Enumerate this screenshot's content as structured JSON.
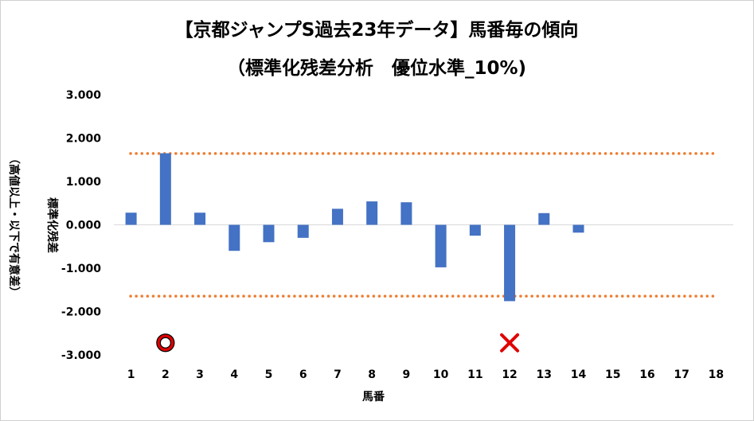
{
  "chart_data": {
    "type": "bar",
    "title": "【京都ジャンプS過去23年データ】馬番毎の傾向",
    "subtitle": "（標準化残差分析　優位水準_10%)",
    "xlabel": "馬番",
    "ylabel": "標準化残差",
    "ylabel_note": "（高値以上・以下で有意差）",
    "categories": [
      "1",
      "2",
      "3",
      "4",
      "5",
      "6",
      "7",
      "8",
      "9",
      "10",
      "11",
      "12",
      "13",
      "14",
      "15",
      "16",
      "17",
      "18"
    ],
    "values": [
      0.28,
      1.65,
      0.28,
      -0.6,
      -0.4,
      -0.3,
      0.37,
      0.54,
      0.52,
      -0.98,
      -0.25,
      -1.76,
      0.27,
      -0.18,
      null,
      null,
      null,
      null
    ],
    "ylim": [
      -3.0,
      3.0
    ],
    "yticks": [
      "3.000",
      "2.000",
      "1.000",
      "0.000",
      "-1.000",
      "-2.000",
      "-3.000"
    ],
    "ytick_values": [
      3,
      2,
      1,
      0,
      -1,
      -2,
      -3
    ],
    "thresholds": [
      1.645,
      -1.645
    ],
    "markers": [
      {
        "category": "2",
        "value": -2.72,
        "symbol": "circle"
      },
      {
        "category": "12",
        "value": -2.72,
        "symbol": "cross"
      }
    ],
    "grid": false,
    "legend": "none",
    "colors": {
      "bar": "#4472C4",
      "threshold": "#ED7D31",
      "circle": "#E00000",
      "cross": "#E00000"
    }
  }
}
